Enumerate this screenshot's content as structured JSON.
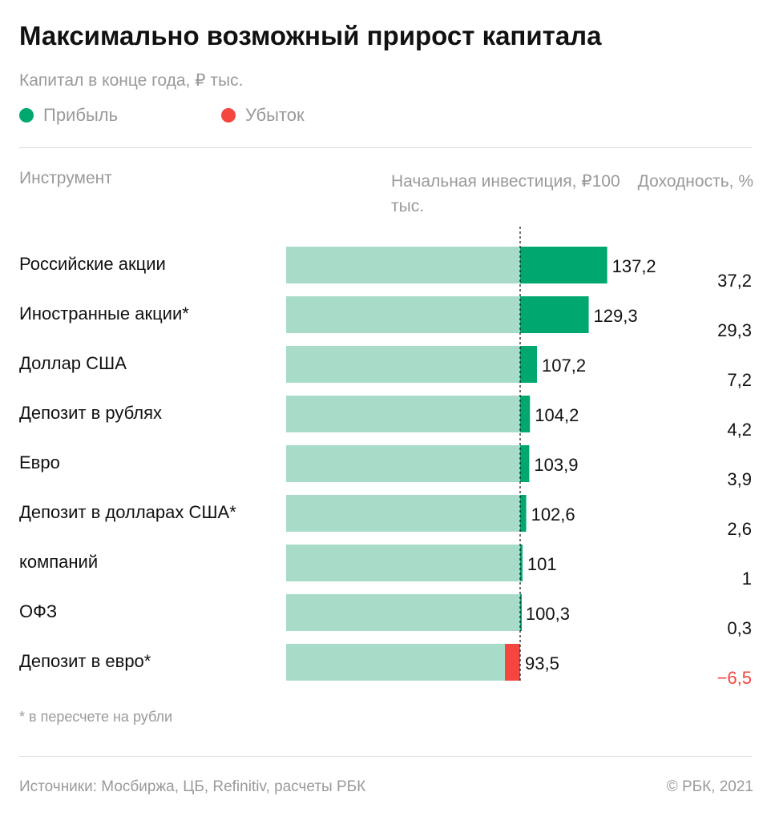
{
  "chart_data": {
    "type": "bar",
    "title": "Максимально возможный прирост капитала",
    "subtitle": "Капитал в конце года, ₽ тыс.",
    "legend": [
      {
        "name": "Прибыль",
        "color": "#00a870"
      },
      {
        "name": "Убыток",
        "color": "#f5453f"
      }
    ],
    "category_header": "Инструмент",
    "reference_label": "Начальная инвестиция, ₽100 тыс.",
    "return_header": "Доходность, %",
    "categories": [
      "Российские акции",
      "Иностранные акции*",
      "Доллар США",
      "Депозит в рублях",
      "Евро",
      "Депозит в долларах США*",
      "компаний",
      "ОФЗ",
      "Депозит в евро*"
    ],
    "values": [
      137.2,
      129.3,
      107.2,
      104.2,
      103.9,
      102.6,
      101,
      100.3,
      93.5
    ],
    "value_labels": [
      "137,2",
      "129,3",
      "107,2",
      "104,2",
      "103,9",
      "102,6",
      "101",
      "100,3",
      "93,5"
    ],
    "returns": [
      37.2,
      29.3,
      7.2,
      4.2,
      3.9,
      2.6,
      1,
      0.3,
      -6.5
    ],
    "return_labels": [
      "37,2",
      "29,3",
      "7,2",
      "4,2",
      "3,9",
      "2,6",
      "1",
      "0,3",
      "−6,5"
    ],
    "reference": 100,
    "base_color": "#a8dcc9",
    "xlim": [
      0,
      200
    ],
    "note": "* в пересчете на рубли",
    "source": "Источники: Мосбиржа, ЦБ, Refinitiv, расчеты РБК",
    "copyright": "© РБК, 2021"
  }
}
